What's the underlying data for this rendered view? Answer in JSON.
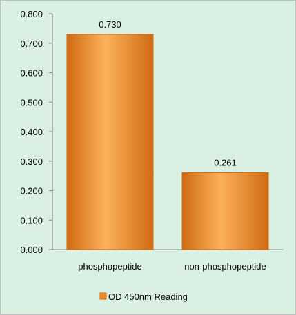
{
  "chart_data": {
    "type": "bar",
    "categories": [
      "phosphopeptide",
      "non-phosphopeptide"
    ],
    "series": [
      {
        "name": "OD 450nm Reading",
        "values": [
          0.73,
          0.261
        ],
        "data_labels": [
          "0.730",
          "0.261"
        ]
      }
    ],
    "ylim": [
      0,
      0.8
    ],
    "yticks": [
      "0.000",
      "0.100",
      "0.200",
      "0.300",
      "0.400",
      "0.500",
      "0.600",
      "0.700",
      "0.800"
    ],
    "grid": false,
    "legend_position": "bottom",
    "colors": {
      "bar": "#f28a22",
      "bar_light": "#fbb15a",
      "bar_dark": "#d06a12",
      "background": "#d9f0e3",
      "axis": "#7f7f7f"
    }
  }
}
